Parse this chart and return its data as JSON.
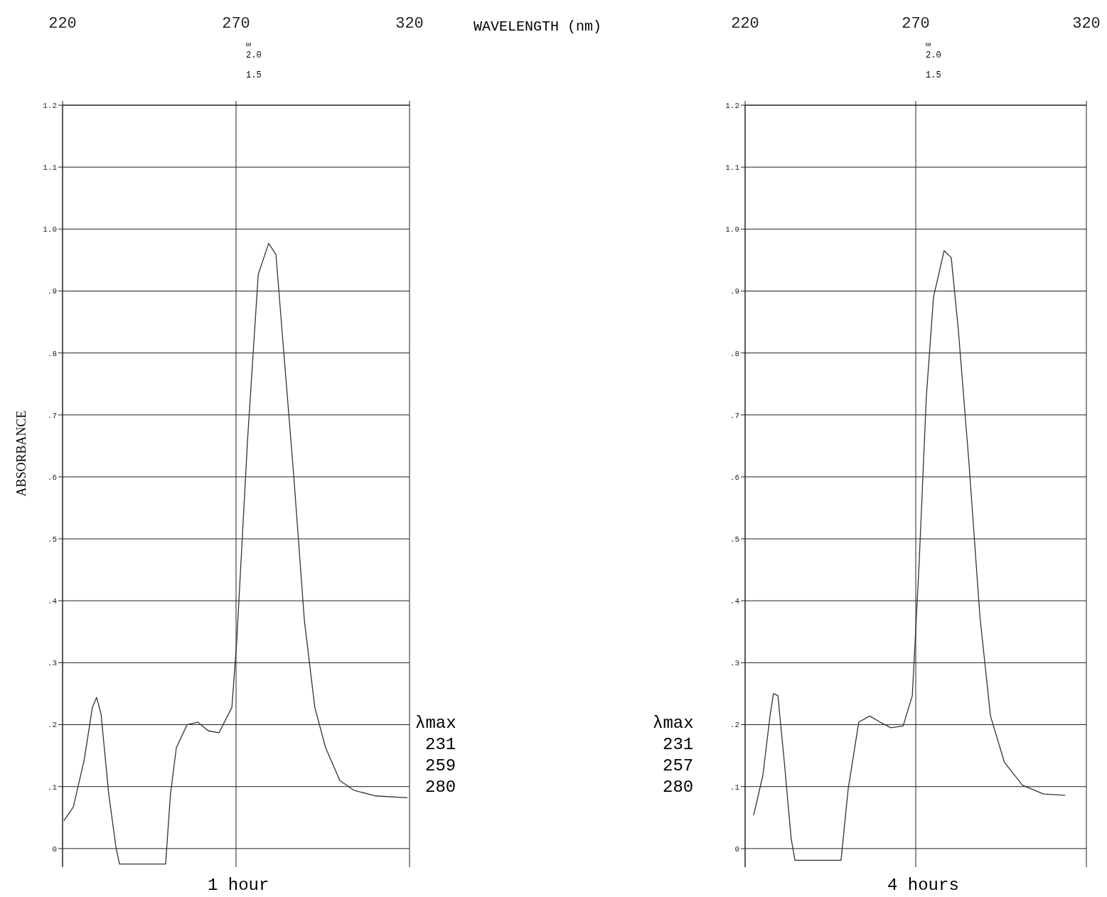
{
  "chart_data": [
    {
      "type": "line",
      "title": "1 hour",
      "xlabel": "WAVELENGTH (nm)",
      "ylabel": "ABSORBANCE",
      "annotations": [
        "1.5",
        "2.0",
        "∞",
        "λmax",
        "231",
        "259",
        "280"
      ],
      "x": [
        220.4,
        223.1,
        226.2,
        228.6,
        229.8,
        231.1,
        233.3,
        235.4,
        236.4,
        249.7,
        251.1,
        252.8,
        255.9,
        259,
        262,
        265.1,
        268.8,
        270.2,
        273.3,
        276.4,
        279.4,
        281.5,
        283.5,
        286.6,
        289.7,
        292.7,
        295.8,
        299.9,
        304,
        310.2,
        319.4
      ],
      "series": [
        {
          "color": "#333333",
          "values": [
            0.045,
            0.067,
            0.142,
            0.228,
            0.244,
            0.217,
            0.088,
            0.002,
            -0.025,
            -0.025,
            0.088,
            0.163,
            0.2,
            0.204,
            0.19,
            0.187,
            0.228,
            0.335,
            0.658,
            0.927,
            0.977,
            0.959,
            0.819,
            0.604,
            0.368,
            0.228,
            0.163,
            0.11,
            0.094,
            0.085,
            0.082
          ]
        }
      ],
      "xlim": [
        220,
        320
      ],
      "xticks": [
        220,
        270,
        320
      ],
      "ylim": [
        -0.03,
        1.2
      ],
      "yticks": [
        {
          "value": 0,
          "label": "0"
        },
        {
          "value": 0.1,
          "label": ".1"
        },
        {
          "value": 0.2,
          "label": ".2"
        },
        {
          "value": 0.3,
          "label": ".3"
        },
        {
          "value": 0.4,
          "label": ".4"
        },
        {
          "value": 0.5,
          "label": ".5"
        },
        {
          "value": 0.6,
          "label": ".6"
        },
        {
          "value": 0.7,
          "label": ".7"
        },
        {
          "value": 0.8,
          "label": ".8"
        },
        {
          "value": 0.9,
          "label": ".9"
        },
        {
          "value": 1.0,
          "label": "1.0"
        },
        {
          "value": 1.1,
          "label": "1.1"
        },
        {
          "value": 1.2,
          "label": "1.2"
        }
      ],
      "grid": true
    },
    {
      "type": "line",
      "title": "4 hours",
      "annotations": [
        "1.5",
        "2.0",
        "∞",
        "λmax",
        "231",
        "257",
        "280"
      ],
      "x": [
        222.5,
        225.2,
        227.3,
        228.3,
        229.6,
        231.5,
        233.5,
        234.6,
        248.1,
        250.2,
        253.3,
        256.5,
        259.6,
        262.7,
        266.3,
        269,
        271,
        273.1,
        275.2,
        278.3,
        280.4,
        282.5,
        285.6,
        288.8,
        291.9,
        296,
        301.3,
        307.5,
        313.8
      ],
      "series": [
        {
          "color": "#333333",
          "values": [
            0.054,
            0.118,
            0.214,
            0.25,
            0.247,
            0.139,
            0.016,
            -0.019,
            -0.019,
            0.096,
            0.204,
            0.214,
            0.204,
            0.195,
            0.198,
            0.247,
            0.461,
            0.729,
            0.89,
            0.965,
            0.954,
            0.836,
            0.622,
            0.375,
            0.214,
            0.139,
            0.102,
            0.088,
            0.086
          ]
        }
      ],
      "xlim": [
        220,
        320
      ],
      "xticks": [
        220,
        270,
        320
      ],
      "ylim": [
        -0.03,
        1.2
      ],
      "yticks": [
        {
          "value": 0,
          "label": "0"
        },
        {
          "value": 0.1,
          "label": ".1"
        },
        {
          "value": 0.2,
          "label": ".2"
        },
        {
          "value": 0.3,
          "label": ".3"
        },
        {
          "value": 0.4,
          "label": ".4"
        },
        {
          "value": 0.5,
          "label": ".5"
        },
        {
          "value": 0.6,
          "label": ".6"
        },
        {
          "value": 0.7,
          "label": ".7"
        },
        {
          "value": 0.8,
          "label": ".8"
        },
        {
          "value": 0.9,
          "label": ".9"
        },
        {
          "value": 1.0,
          "label": "1.0"
        },
        {
          "value": 1.1,
          "label": "1.1"
        },
        {
          "value": 1.2,
          "label": "1.2"
        }
      ],
      "grid": true
    }
  ]
}
